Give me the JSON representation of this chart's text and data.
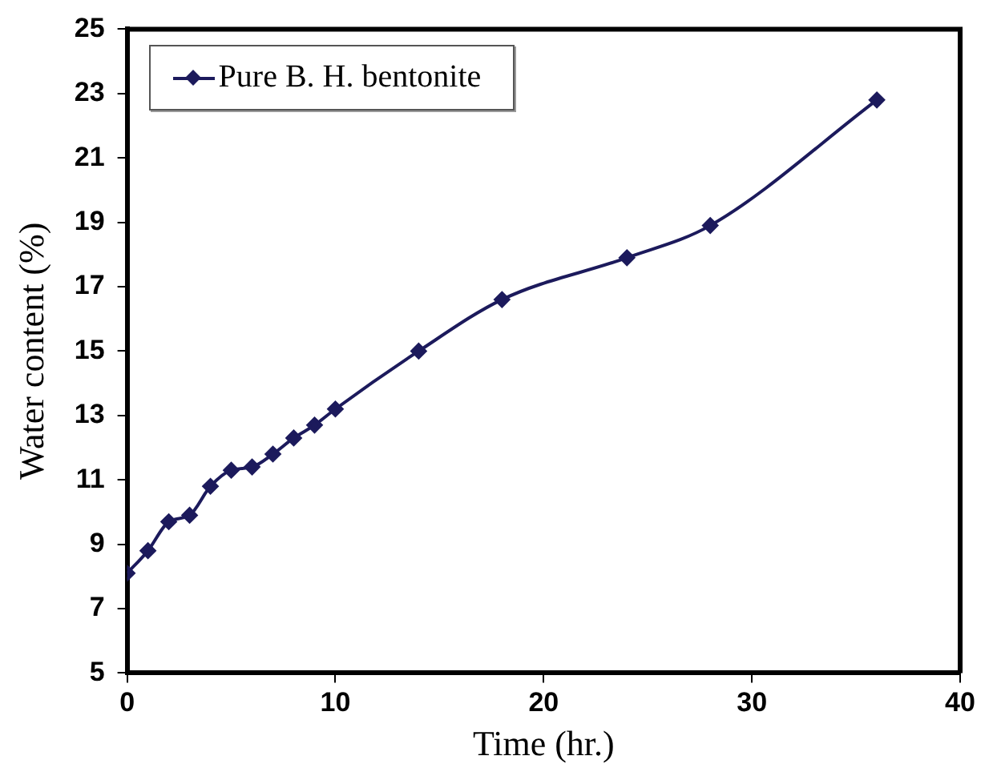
{
  "chart_data": {
    "type": "line",
    "xlabel": "Time (hr.)",
    "ylabel": "Water content (%)",
    "x": [
      0,
      1,
      2,
      3,
      4,
      5,
      6,
      7,
      8,
      9,
      10,
      14,
      18,
      24,
      28,
      36
    ],
    "series": [
      {
        "name": "Pure B. H. bentonite",
        "color": "#1c1a5c",
        "values": [
          8.1,
          8.8,
          9.7,
          9.9,
          10.8,
          11.3,
          11.4,
          11.8,
          12.3,
          12.7,
          13.2,
          15.0,
          16.6,
          17.9,
          18.9,
          22.8
        ]
      }
    ],
    "xlim": [
      0,
      40
    ],
    "xticks": [
      0,
      10,
      20,
      30,
      40
    ],
    "ylim": [
      5,
      25
    ],
    "yticks": [
      5,
      7,
      9,
      11,
      13,
      15,
      17,
      19,
      21,
      23,
      25
    ],
    "grid": false,
    "legend": "top left",
    "marker": "diamond",
    "line_style": "solid"
  }
}
